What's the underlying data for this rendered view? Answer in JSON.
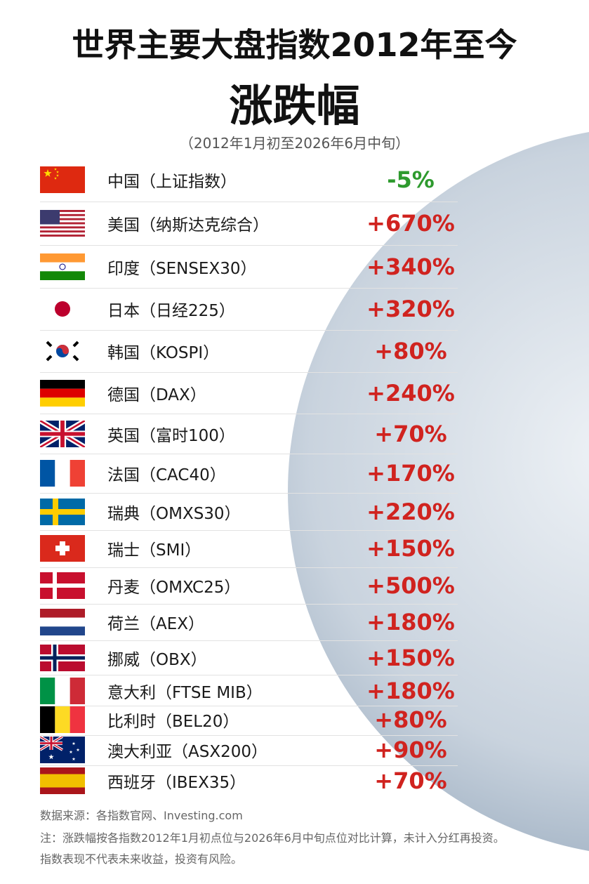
{
  "header": {
    "title": "世界主要大盘指数2012年至今",
    "title2": "涨跌幅",
    "subtitle": "（2012年1月初至2026年6月中旬）"
  },
  "rows": [
    {
      "name": "中国（上证指数）",
      "change": "-5%"
    },
    {
      "name": "美国（纳斯达克综合）",
      "change": "+670%"
    },
    {
      "name": "印度（SENSEX30）",
      "change": "+340%"
    },
    {
      "name": "日本（日经225）",
      "change": "+320%"
    },
    {
      "name": "韩国（KOSPI）",
      "change": "+80%"
    },
    {
      "name": "德国（DAX）",
      "change": "+240%"
    },
    {
      "name": "英国（富时100）",
      "change": "+70%"
    },
    {
      "name": "法国（CAC40）",
      "change": "+170%"
    },
    {
      "name": "瑞典（OMXS30）",
      "change": "+220%"
    },
    {
      "name": "瑞士（SMI）",
      "change": "+150%"
    },
    {
      "name": "丹麦（OMXC25）",
      "change": "+500%"
    },
    {
      "name": "荷兰（AEX）",
      "change": "+180%"
    },
    {
      "name": "挪威（OBX）",
      "change": "+150%"
    },
    {
      "name": "意大利（FTSE MIB）",
      "change": "+180%"
    },
    {
      "name": "比利时（BEL20）",
      "change": "+80%"
    },
    {
      "name": "澳大利亚（ASX200）",
      "change": "+90%"
    },
    {
      "name": "西班牙（IBEX35）",
      "change": "+70%"
    }
  ],
  "footer": {
    "source": "数据来源：各指数官网、Investing.com",
    "note": "注：涨跌幅按各指数2012年1月初点位与2026年6月中旬点位对比计算，未计入分红再投资。",
    "risk": "指数表现不代表未来收益，投资有风险。"
  }
}
